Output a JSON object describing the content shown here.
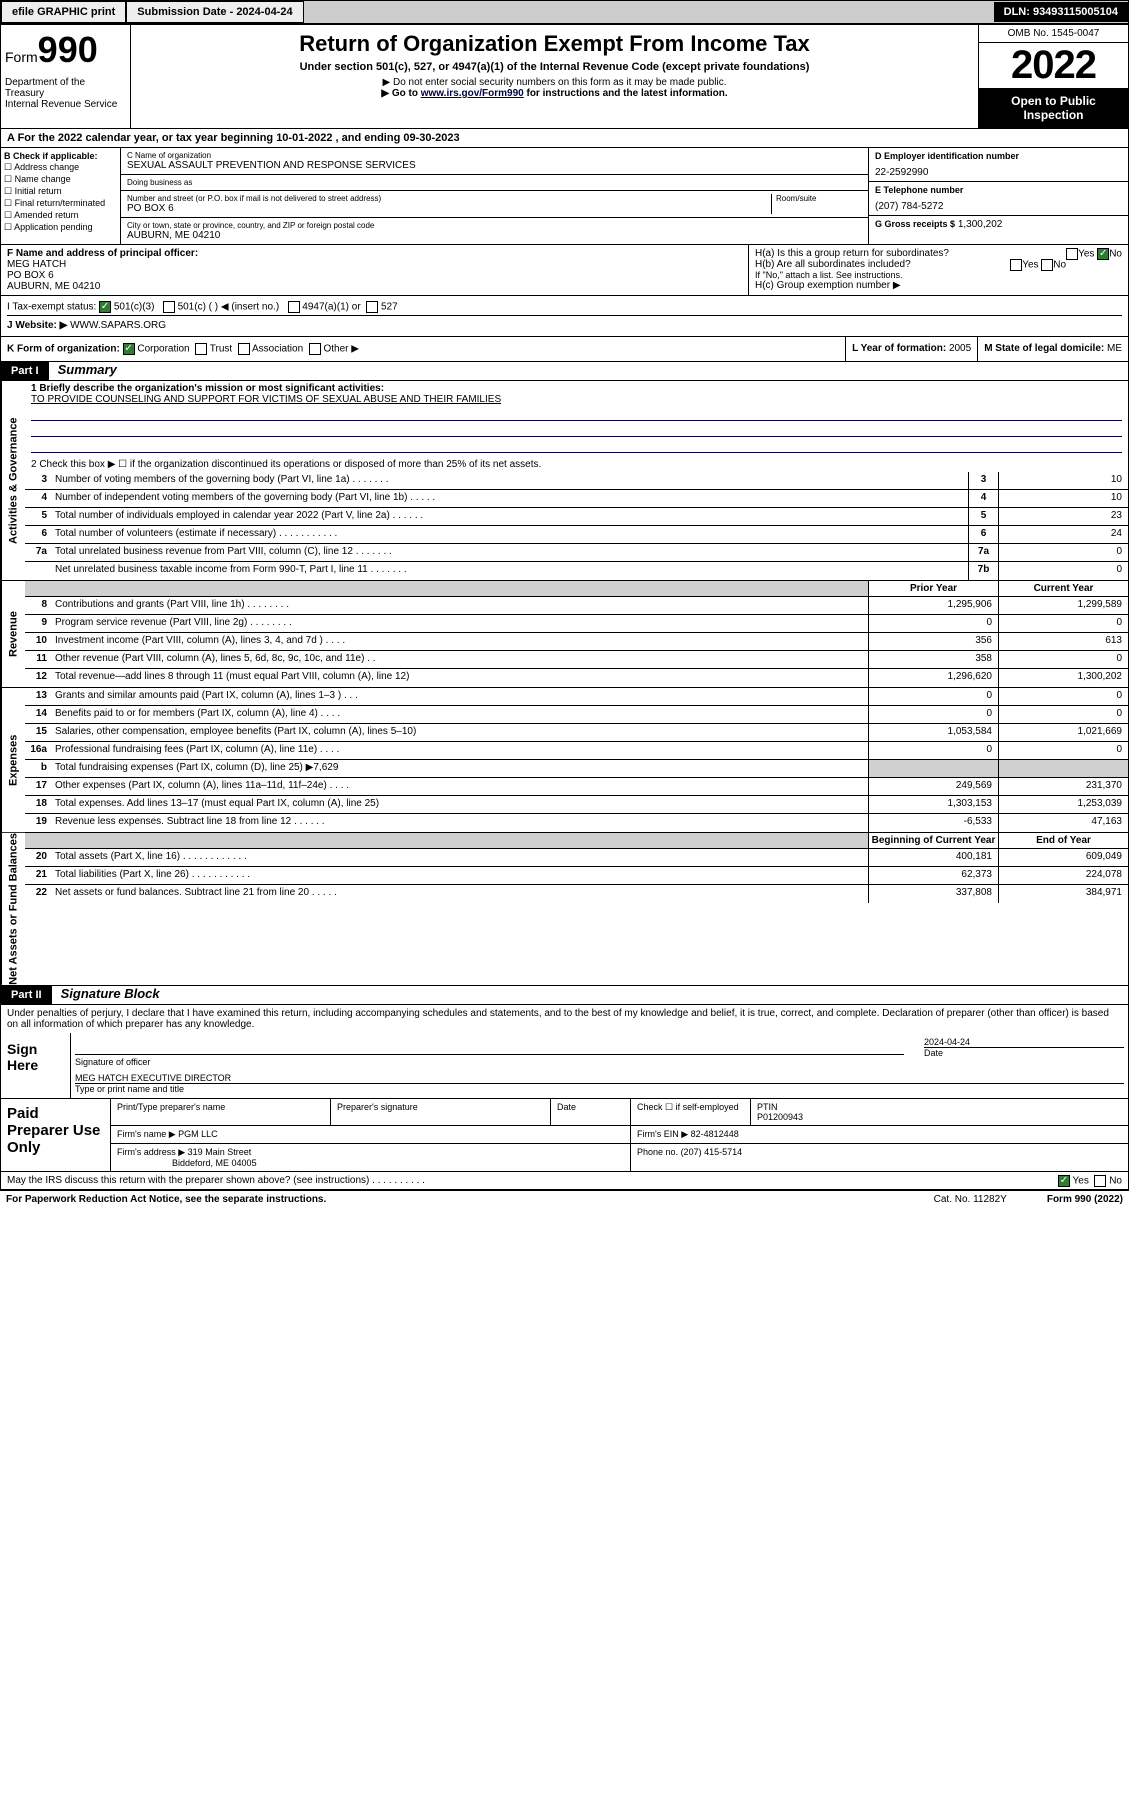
{
  "topbar": {
    "efile": "efile GRAPHIC print",
    "sub_label": "Submission Date - 2024-04-24",
    "dln": "DLN: 93493115005104"
  },
  "header": {
    "form_word": "Form",
    "form_num": "990",
    "dept": "Department of the Treasury\nInternal Revenue Service",
    "title": "Return of Organization Exempt From Income Tax",
    "sub": "Under section 501(c), 527, or 4947(a)(1) of the Internal Revenue Code (except private foundations)",
    "note1": "▶ Do not enter social security numbers on this form as it may be made public.",
    "goto_pre": "▶ Go to ",
    "goto_link": "www.irs.gov/Form990",
    "goto_post": " for instructions and the latest information.",
    "omb": "OMB No. 1545-0047",
    "year": "2022",
    "inspect": "Open to Public Inspection"
  },
  "line_a": "A For the 2022 calendar year, or tax year beginning 10-01-2022   , and ending 09-30-2023",
  "col_b": {
    "hdr": "B Check if applicable:",
    "items": [
      "Address change",
      "Name change",
      "Initial return",
      "Final return/terminated",
      "Amended return",
      "Application pending"
    ]
  },
  "col_c": {
    "name_label": "C Name of organization",
    "name": "SEXUAL ASSAULT PREVENTION AND RESPONSE SERVICES",
    "dba_label": "Doing business as",
    "dba": "",
    "addr_label": "Number and street (or P.O. box if mail is not delivered to street address)",
    "room_label": "Room/suite",
    "addr": "PO BOX 6",
    "city_label": "City or town, state or province, country, and ZIP or foreign postal code",
    "city": "AUBURN, ME  04210"
  },
  "col_d": {
    "ein_label": "D Employer identification number",
    "ein": "22-2592990",
    "phone_label": "E Telephone number",
    "phone": "(207) 784-5272",
    "gross_label": "G Gross receipts $",
    "gross": "1,300,202"
  },
  "col_f": {
    "label": "F Name and address of principal officer:",
    "name": "MEG HATCH",
    "addr1": "PO BOX 6",
    "addr2": "AUBURN, ME  04210"
  },
  "col_h": {
    "ha": "H(a)  Is this a group return for subordinates?",
    "ha_yes": "Yes",
    "ha_no": "No",
    "hb": "H(b)  Are all subordinates included?",
    "hb_note": "If \"No,\" attach a list. See instructions.",
    "hc": "H(c)  Group exemption number ▶"
  },
  "row_i": {
    "label": "I   Tax-exempt status:",
    "c3": "501(c)(3)",
    "c": "501(c) (  ) ◀ (insert no.)",
    "a1": "4947(a)(1) or",
    "s527": "527"
  },
  "row_j": {
    "label": "J   Website: ▶",
    "val": "WWW.SAPARS.ORG"
  },
  "row_k": {
    "label": "K Form of organization:",
    "corp": "Corporation",
    "trust": "Trust",
    "assoc": "Association",
    "other": "Other ▶"
  },
  "row_l": {
    "label": "L Year of formation:",
    "val": "2005"
  },
  "row_m": {
    "label": "M State of legal domicile:",
    "val": "ME"
  },
  "part1": {
    "num": "Part I",
    "title": "Summary"
  },
  "summary": {
    "q1_label": "1   Briefly describe the organization's mission or most significant activities:",
    "q1_val": "TO PROVIDE COUNSELING AND SUPPORT FOR VICTIMS OF SEXUAL ABUSE AND THEIR FAMILIES",
    "q2": "2   Check this box ▶ ☐  if the organization discontinued its operations or disposed of more than 25% of its net assets.",
    "sidetabs": {
      "gov": "Activities & Governance",
      "rev": "Revenue",
      "exp": "Expenses",
      "net": "Net Assets or Fund Balances"
    },
    "gov_lines": [
      {
        "n": "3",
        "t": "Number of voting members of the governing body (Part VI, line 1a)  .   .   .   .   .   .   .",
        "b": "3",
        "v": "10"
      },
      {
        "n": "4",
        "t": "Number of independent voting members of the governing body (Part VI, line 1b)  .   .   .   .   .",
        "b": "4",
        "v": "10"
      },
      {
        "n": "5",
        "t": "Total number of individuals employed in calendar year 2022 (Part V, line 2a)  .   .   .   .   .   .",
        "b": "5",
        "v": "23"
      },
      {
        "n": "6",
        "t": "Total number of volunteers (estimate if necessary)  .   .   .   .   .   .   .   .   .   .   .",
        "b": "6",
        "v": "24"
      },
      {
        "n": "7a",
        "t": "Total unrelated business revenue from Part VIII, column (C), line 12  .   .   .   .   .   .   .",
        "b": "7a",
        "v": "0"
      },
      {
        "n": "",
        "t": "Net unrelated business taxable income from Form 990-T, Part I, line 11  .   .   .   .   .   .   .",
        "b": "7b",
        "v": "0"
      }
    ],
    "col_hdr_prior": "Prior Year",
    "col_hdr_curr": "Current Year",
    "rev_lines": [
      {
        "n": "8",
        "t": "Contributions and grants (Part VIII, line 1h)  .   .   .   .   .   .   .   .",
        "p": "1,295,906",
        "c": "1,299,589"
      },
      {
        "n": "9",
        "t": "Program service revenue (Part VIII, line 2g)  .   .   .   .   .   .   .   .",
        "p": "0",
        "c": "0"
      },
      {
        "n": "10",
        "t": "Investment income (Part VIII, column (A), lines 3, 4, and 7d )  .   .   .   .",
        "p": "356",
        "c": "613"
      },
      {
        "n": "11",
        "t": "Other revenue (Part VIII, column (A), lines 5, 6d, 8c, 9c, 10c, and 11e)  .   .",
        "p": "358",
        "c": "0"
      },
      {
        "n": "12",
        "t": "Total revenue—add lines 8 through 11 (must equal Part VIII, column (A), line 12)",
        "p": "1,296,620",
        "c": "1,300,202"
      }
    ],
    "exp_lines": [
      {
        "n": "13",
        "t": "Grants and similar amounts paid (Part IX, column (A), lines 1–3 )  .   .   .",
        "p": "0",
        "c": "0"
      },
      {
        "n": "14",
        "t": "Benefits paid to or for members (Part IX, column (A), line 4)  .   .   .   .",
        "p": "0",
        "c": "0"
      },
      {
        "n": "15",
        "t": "Salaries, other compensation, employee benefits (Part IX, column (A), lines 5–10)",
        "p": "1,053,584",
        "c": "1,021,669"
      },
      {
        "n": "16a",
        "t": "Professional fundraising fees (Part IX, column (A), line 11e)  .   .   .   .",
        "p": "0",
        "c": "0"
      },
      {
        "n": "b",
        "t": "Total fundraising expenses (Part IX, column (D), line 25) ▶7,629",
        "p": "",
        "c": "",
        "grey": true
      },
      {
        "n": "17",
        "t": "Other expenses (Part IX, column (A), lines 11a–11d, 11f–24e)  .   .   .   .",
        "p": "249,569",
        "c": "231,370"
      },
      {
        "n": "18",
        "t": "Total expenses. Add lines 13–17 (must equal Part IX, column (A), line 25)",
        "p": "1,303,153",
        "c": "1,253,039"
      },
      {
        "n": "19",
        "t": "Revenue less expenses. Subtract line 18 from line 12  .   .   .   .   .   .",
        "p": "-6,533",
        "c": "47,163"
      }
    ],
    "net_hdr_beg": "Beginning of Current Year",
    "net_hdr_end": "End of Year",
    "net_lines": [
      {
        "n": "20",
        "t": "Total assets (Part X, line 16)  .   .   .   .   .   .   .   .   .   .   .   .",
        "p": "400,181",
        "c": "609,049"
      },
      {
        "n": "21",
        "t": "Total liabilities (Part X, line 26)  .   .   .   .   .   .   .   .   .   .   .",
        "p": "62,373",
        "c": "224,078"
      },
      {
        "n": "22",
        "t": "Net assets or fund balances. Subtract line 21 from line 20  .   .   .   .   .",
        "p": "337,808",
        "c": "384,971"
      }
    ]
  },
  "part2": {
    "num": "Part II",
    "title": "Signature Block"
  },
  "penalties": "Under penalties of perjury, I declare that I have examined this return, including accompanying schedules and statements, and to the best of my knowledge and belief, it is true, correct, and complete. Declaration of preparer (other than officer) is based on all information of which preparer has any knowledge.",
  "sign": {
    "label": "Sign Here",
    "sig_of": "Signature of officer",
    "date_label": "Date",
    "date": "2024-04-24",
    "name": "MEG HATCH  EXECUTIVE DIRECTOR",
    "name_label": "Type or print name and title"
  },
  "prep": {
    "label": "Paid Preparer Use Only",
    "h_name": "Print/Type preparer's name",
    "h_sig": "Preparer's signature",
    "h_date": "Date",
    "h_check": "Check ☐ if self-employed",
    "h_ptin": "PTIN",
    "ptin": "P01200943",
    "firm_name_l": "Firm's name    ▶",
    "firm_name": "PGM LLC",
    "firm_ein_l": "Firm's EIN ▶",
    "firm_ein": "82-4812448",
    "firm_addr_l": "Firm's address ▶",
    "firm_addr1": "319 Main Street",
    "firm_addr2": "Biddeford, ME  04005",
    "phone_l": "Phone no.",
    "phone": "(207) 415-5714"
  },
  "discuss": {
    "q": "May the IRS discuss this return with the preparer shown above? (see instructions)   .   .   .   .   .   .   .   .   .   .",
    "yes": "Yes",
    "no": "No"
  },
  "footer": {
    "left": "For Paperwork Reduction Act Notice, see the separate instructions.",
    "mid": "Cat. No. 11282Y",
    "right": "Form 990 (2022)"
  }
}
